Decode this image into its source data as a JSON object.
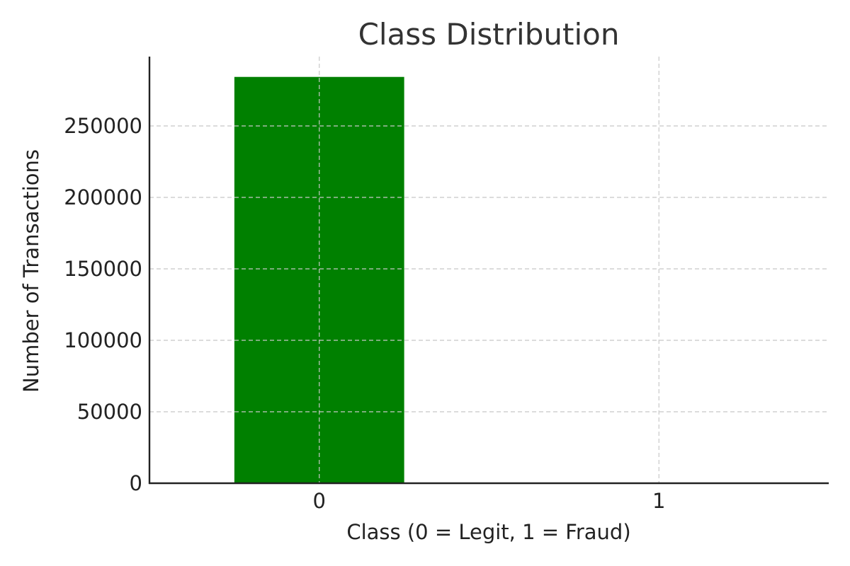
{
  "chart_data": {
    "type": "bar",
    "title": "Class Distribution",
    "xlabel": "Class (0 = Legit, 1 = Fraud)",
    "ylabel": "Number of Transactions",
    "categories": [
      "0",
      "1"
    ],
    "values": [
      284315,
      492
    ],
    "ylim": [
      0,
      298531
    ],
    "yticks": [
      0,
      50000,
      100000,
      150000,
      200000,
      250000
    ],
    "ytick_labels": [
      "0",
      "50000",
      "100000",
      "150000",
      "200000",
      "250000"
    ],
    "grid": true,
    "bar_colors": [
      "#008000",
      "#ff0000"
    ]
  }
}
